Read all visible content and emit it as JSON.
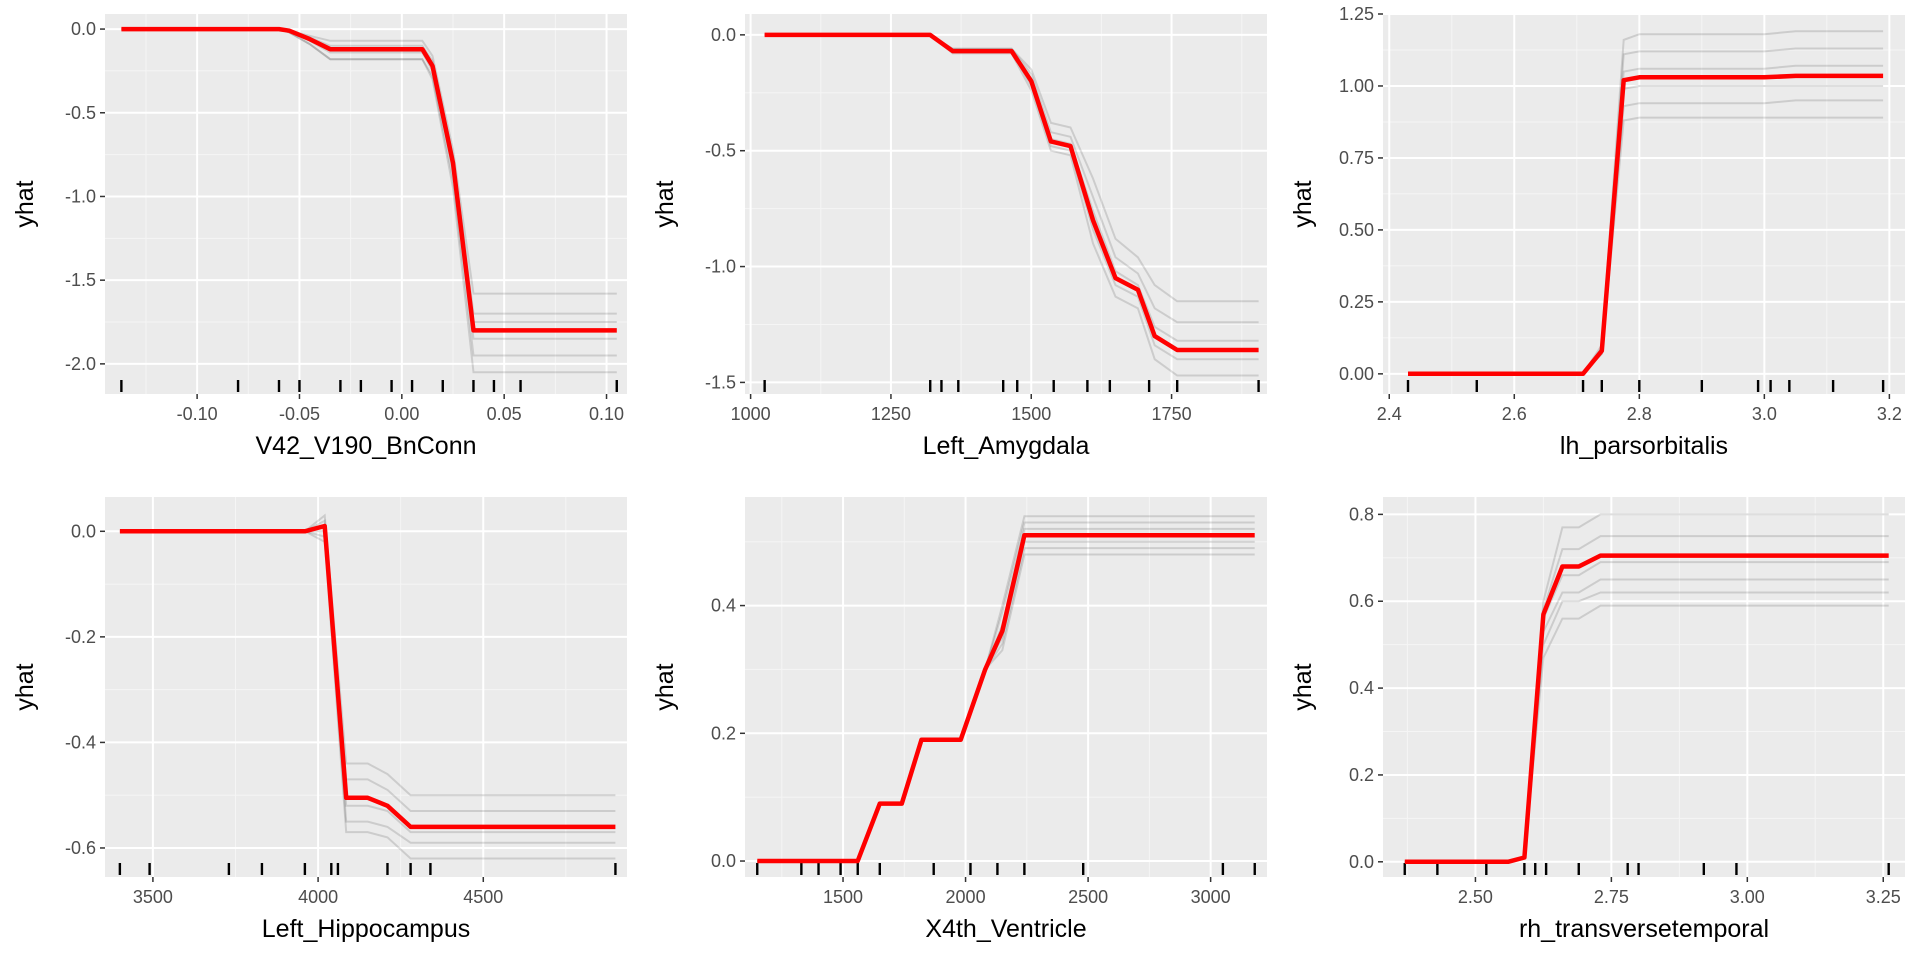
{
  "colors": {
    "pdp": "#ff0000",
    "ice": "#000000",
    "panel_background": "#ebebeb",
    "gridline": "#ffffff"
  },
  "chart_data": [
    {
      "type": "line",
      "xlabel": "V42_V190_BnConn",
      "ylabel": "yhat",
      "xlim": [
        -0.145,
        0.11
      ],
      "ylim": [
        -2.18,
        0.09
      ],
      "xticks": [
        -0.1,
        -0.05,
        0.0,
        0.05,
        0.1
      ],
      "xtick_labels": [
        "-0.10",
        "-0.05",
        "0.00",
        "0.05",
        "0.10"
      ],
      "yticks": [
        0.0,
        -0.5,
        -1.0,
        -1.5,
        -2.0
      ],
      "ytick_labels": [
        "0.0",
        "-0.5",
        "-1.0",
        "-1.5",
        "-2.0"
      ],
      "x": [
        -0.137,
        -0.06,
        -0.055,
        -0.045,
        -0.035,
        0.0,
        0.01,
        0.015,
        0.025,
        0.035,
        0.105
      ],
      "pdp": [
        0.0,
        0.0,
        -0.01,
        -0.06,
        -0.12,
        -0.12,
        -0.12,
        -0.22,
        -0.8,
        -1.8,
        -1.8
      ],
      "ice": [
        [
          0.0,
          0.0,
          -0.01,
          -0.04,
          -0.07,
          -0.07,
          -0.07,
          -0.16,
          -0.72,
          -1.58,
          -1.58
        ],
        [
          0.0,
          0.0,
          -0.01,
          -0.05,
          -0.1,
          -0.1,
          -0.1,
          -0.19,
          -0.76,
          -1.7,
          -1.7
        ],
        [
          0.0,
          0.0,
          -0.01,
          -0.06,
          -0.12,
          -0.12,
          -0.12,
          -0.22,
          -0.8,
          -1.75,
          -1.75
        ],
        [
          0.0,
          0.0,
          -0.01,
          -0.07,
          -0.14,
          -0.14,
          -0.14,
          -0.25,
          -0.84,
          -1.85,
          -1.85
        ],
        [
          0.0,
          0.0,
          -0.02,
          -0.09,
          -0.18,
          -0.18,
          -0.18,
          -0.28,
          -0.9,
          -1.95,
          -1.95
        ],
        [
          0.0,
          0.0,
          -0.02,
          -0.09,
          -0.18,
          -0.18,
          -0.18,
          -0.3,
          -0.95,
          -2.05,
          -2.05
        ]
      ],
      "rug": [
        -0.137,
        -0.08,
        -0.06,
        -0.05,
        -0.03,
        -0.02,
        -0.005,
        0.005,
        0.02,
        0.035,
        0.045,
        0.058,
        0.105
      ]
    },
    {
      "type": "line",
      "xlabel": "Left_Amygdala",
      "ylabel": "yhat",
      "xlim": [
        990,
        1920
      ],
      "ylim": [
        -1.55,
        0.09
      ],
      "xticks": [
        1000,
        1250,
        1500,
        1750
      ],
      "xtick_labels": [
        "1000",
        "1250",
        "1500",
        "1750"
      ],
      "yticks": [
        0.0,
        -0.5,
        -1.0,
        -1.5
      ],
      "ytick_labels": [
        "0.0",
        "-0.5",
        "-1.0",
        "-1.5"
      ],
      "x": [
        1025,
        1320,
        1360,
        1465,
        1500,
        1535,
        1570,
        1610,
        1650,
        1690,
        1720,
        1760,
        1905
      ],
      "pdp": [
        0.0,
        0.0,
        -0.07,
        -0.07,
        -0.2,
        -0.46,
        -0.48,
        -0.8,
        -1.05,
        -1.1,
        -1.3,
        -1.36,
        -1.36
      ],
      "ice": [
        [
          0.0,
          0.0,
          -0.06,
          -0.06,
          -0.15,
          -0.38,
          -0.4,
          -0.62,
          -0.88,
          -0.96,
          -1.08,
          -1.15,
          -1.15
        ],
        [
          0.0,
          0.0,
          -0.06,
          -0.06,
          -0.17,
          -0.42,
          -0.44,
          -0.7,
          -0.96,
          -1.03,
          -1.18,
          -1.24,
          -1.24
        ],
        [
          0.0,
          0.0,
          -0.07,
          -0.07,
          -0.19,
          -0.45,
          -0.47,
          -0.76,
          -1.02,
          -1.08,
          -1.26,
          -1.32,
          -1.32
        ],
        [
          0.0,
          0.0,
          -0.07,
          -0.07,
          -0.22,
          -0.48,
          -0.5,
          -0.84,
          -1.08,
          -1.13,
          -1.34,
          -1.4,
          -1.4
        ],
        [
          0.0,
          0.0,
          -0.08,
          -0.08,
          -0.24,
          -0.5,
          -0.52,
          -0.9,
          -1.13,
          -1.18,
          -1.4,
          -1.47,
          -1.47
        ]
      ],
      "rug": [
        1025,
        1320,
        1340,
        1370,
        1450,
        1475,
        1540,
        1600,
        1640,
        1710,
        1760,
        1905
      ]
    },
    {
      "type": "line",
      "xlabel": "lh_parsorbitalis",
      "ylabel": "yhat",
      "xlim": [
        2.39,
        3.225
      ],
      "ylim": [
        -0.07,
        1.25
      ],
      "xticks": [
        2.4,
        2.6,
        2.8,
        3.0,
        3.2
      ],
      "xtick_labels": [
        "2.4",
        "2.6",
        "2.8",
        "3.0",
        "3.2"
      ],
      "yticks": [
        0.0,
        0.25,
        0.5,
        0.75,
        1.0,
        1.25
      ],
      "ytick_labels": [
        "0.00",
        "0.25",
        "0.50",
        "0.75",
        "1.00",
        "1.25"
      ],
      "x": [
        2.43,
        2.71,
        2.74,
        2.775,
        2.8,
        3.0,
        3.05,
        3.19
      ],
      "pdp": [
        0.0,
        0.0,
        0.08,
        1.02,
        1.03,
        1.03,
        1.035,
        1.035
      ],
      "ice": [
        [
          0.0,
          0.0,
          0.1,
          1.16,
          1.18,
          1.18,
          1.19,
          1.19
        ],
        [
          0.0,
          0.0,
          0.09,
          1.11,
          1.12,
          1.12,
          1.13,
          1.13
        ],
        [
          0.0,
          0.0,
          0.08,
          1.05,
          1.06,
          1.06,
          1.07,
          1.07
        ],
        [
          0.0,
          0.0,
          0.08,
          0.99,
          1.0,
          1.0,
          1.0,
          1.0
        ],
        [
          0.0,
          0.0,
          0.07,
          0.93,
          0.94,
          0.94,
          0.95,
          0.95
        ],
        [
          0.0,
          0.0,
          0.07,
          0.88,
          0.89,
          0.89,
          0.89,
          0.89
        ]
      ],
      "rug": [
        2.43,
        2.54,
        2.71,
        2.74,
        2.8,
        2.9,
        2.99,
        3.01,
        3.04,
        3.11,
        3.19
      ]
    },
    {
      "type": "line",
      "xlabel": "Left_Hippocampus",
      "ylabel": "yhat",
      "xlim": [
        3355,
        4935
      ],
      "ylim": [
        -0.655,
        0.065
      ],
      "xticks": [
        3500,
        4000,
        4500
      ],
      "xtick_labels": [
        "3500",
        "4000",
        "4500"
      ],
      "yticks": [
        0.0,
        -0.2,
        -0.4,
        -0.6
      ],
      "ytick_labels": [
        "0.0",
        "-0.2",
        "-0.4",
        "-0.6"
      ],
      "x": [
        3400,
        3960,
        4020,
        4085,
        4150,
        4210,
        4280,
        4900
      ],
      "pdp": [
        0.0,
        0.0,
        0.01,
        -0.505,
        -0.505,
        -0.52,
        -0.56,
        -0.56
      ],
      "ice": [
        [
          0.0,
          0.0,
          0.03,
          -0.44,
          -0.44,
          -0.46,
          -0.5,
          -0.5
        ],
        [
          0.0,
          0.0,
          0.02,
          -0.47,
          -0.47,
          -0.49,
          -0.53,
          -0.53
        ],
        [
          0.0,
          0.0,
          0.0,
          -0.52,
          -0.52,
          -0.53,
          -0.57,
          -0.57
        ],
        [
          0.0,
          0.0,
          -0.01,
          -0.55,
          -0.55,
          -0.56,
          -0.59,
          -0.59
        ],
        [
          0.0,
          0.0,
          -0.02,
          -0.57,
          -0.57,
          -0.58,
          -0.62,
          -0.62
        ]
      ],
      "rug": [
        3400,
        3490,
        3730,
        3830,
        3960,
        4040,
        4060,
        4210,
        4280,
        4340,
        4900
      ]
    },
    {
      "type": "line",
      "xlabel": "X4th_Ventricle",
      "ylabel": "yhat",
      "xlim": [
        1100,
        3230
      ],
      "ylim": [
        -0.025,
        0.57
      ],
      "xticks": [
        1500,
        2000,
        2500,
        3000
      ],
      "xtick_labels": [
        "1500",
        "2000",
        "2500",
        "3000"
      ],
      "yticks": [
        0.0,
        0.2,
        0.4
      ],
      "ytick_labels": [
        "0.0",
        "0.2",
        "0.4"
      ],
      "x": [
        1150,
        1560,
        1650,
        1740,
        1820,
        1980,
        2080,
        2150,
        2240,
        3180
      ],
      "pdp": [
        0.0,
        0.0,
        0.09,
        0.09,
        0.19,
        0.19,
        0.3,
        0.36,
        0.51,
        0.51
      ],
      "ice": [
        [
          0.0,
          0.0,
          0.09,
          0.09,
          0.19,
          0.19,
          0.3,
          0.4,
          0.54,
          0.54
        ],
        [
          0.0,
          0.0,
          0.09,
          0.09,
          0.19,
          0.19,
          0.3,
          0.39,
          0.53,
          0.53
        ],
        [
          0.0,
          0.0,
          0.09,
          0.09,
          0.19,
          0.19,
          0.3,
          0.37,
          0.52,
          0.52
        ],
        [
          0.0,
          0.0,
          0.09,
          0.09,
          0.19,
          0.19,
          0.3,
          0.35,
          0.5,
          0.5
        ],
        [
          0.0,
          0.0,
          0.09,
          0.09,
          0.19,
          0.19,
          0.3,
          0.34,
          0.49,
          0.49
        ],
        [
          0.0,
          0.0,
          0.09,
          0.09,
          0.19,
          0.19,
          0.3,
          0.33,
          0.48,
          0.48
        ]
      ],
      "rug": [
        1150,
        1330,
        1400,
        1490,
        1560,
        1650,
        1870,
        2020,
        2130,
        2240,
        2480,
        3050,
        3180
      ]
    },
    {
      "type": "line",
      "xlabel": "rh_transversetemporal",
      "ylabel": "yhat",
      "xlim": [
        2.33,
        3.29
      ],
      "ylim": [
        -0.035,
        0.84
      ],
      "xticks": [
        2.5,
        2.75,
        3.0,
        3.25
      ],
      "xtick_labels": [
        "2.50",
        "2.75",
        "3.00",
        "3.25"
      ],
      "yticks": [
        0.0,
        0.2,
        0.4,
        0.6,
        0.8
      ],
      "ytick_labels": [
        "0.0",
        "0.2",
        "0.4",
        "0.6",
        "0.8"
      ],
      "x": [
        2.37,
        2.56,
        2.59,
        2.625,
        2.66,
        2.69,
        2.73,
        3.26
      ],
      "pdp": [
        0.0,
        0.0,
        0.01,
        0.57,
        0.68,
        0.68,
        0.705,
        0.705
      ],
      "ice": [
        [
          0.0,
          0.0,
          0.01,
          0.6,
          0.77,
          0.77,
          0.8,
          0.8
        ],
        [
          0.0,
          0.0,
          0.01,
          0.58,
          0.72,
          0.72,
          0.75,
          0.75
        ],
        [
          0.0,
          0.0,
          0.01,
          0.56,
          0.66,
          0.66,
          0.69,
          0.69
        ],
        [
          0.0,
          0.0,
          0.01,
          0.53,
          0.62,
          0.62,
          0.65,
          0.65
        ],
        [
          0.0,
          0.0,
          0.01,
          0.5,
          0.6,
          0.6,
          0.62,
          0.62
        ],
        [
          0.0,
          0.0,
          0.01,
          0.47,
          0.56,
          0.56,
          0.59,
          0.59
        ]
      ],
      "rug": [
        2.37,
        2.43,
        2.52,
        2.59,
        2.61,
        2.63,
        2.69,
        2.78,
        2.8,
        2.92,
        2.98,
        3.26
      ]
    }
  ]
}
